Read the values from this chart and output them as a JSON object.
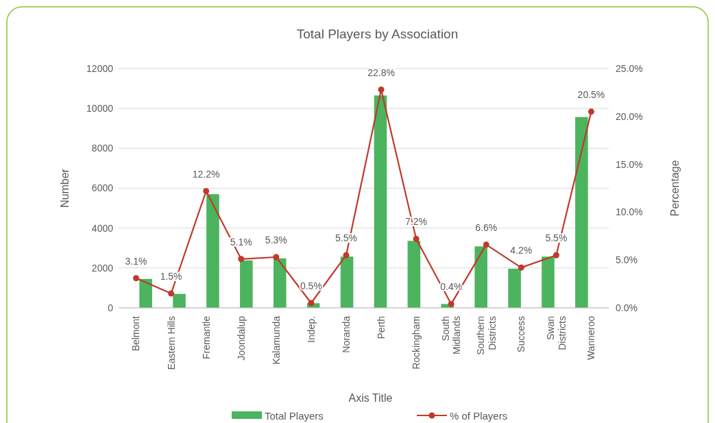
{
  "chart_data": {
    "type": "bar",
    "title": "Total Players by Association",
    "xlabel": "Axis Title",
    "ylabel": "Number",
    "y2label": "Percentage",
    "categories": [
      "Belmont",
      "Eastern Hills",
      "Fremantle",
      "Joondalup",
      "Kalamunda",
      "Indep.",
      "Noranda",
      "Perth",
      "Rockingham",
      "South Midlands",
      "Southern Districts",
      "Success",
      "Swan Districts",
      "Wanneroo"
    ],
    "series": [
      {
        "name": "Total Players",
        "color": "#4cb45e",
        "values": [
          1450,
          700,
          5700,
          2380,
          2480,
          230,
          2570,
          10650,
          3360,
          190,
          3080,
          1960,
          2570,
          9570
        ]
      },
      {
        "name": "% of Players",
        "type": "line",
        "axis": "y2",
        "color": "#c0392b",
        "marker": "circle",
        "values": [
          3.1,
          1.5,
          12.2,
          5.1,
          5.3,
          0.5,
          5.5,
          22.8,
          7.2,
          0.4,
          6.6,
          4.2,
          5.5,
          20.5
        ],
        "value_labels": [
          "3.1%",
          "1.5%",
          "12.2%",
          "5.1%",
          "5.3%",
          "0.5%",
          "5.5%",
          "22.8%",
          "7.2%",
          "0.4%",
          "6.6%",
          "4.2%",
          "5.5%",
          "20.5%"
        ]
      }
    ],
    "ylim": [
      0,
      12000
    ],
    "yticks": [
      0,
      2000,
      4000,
      6000,
      8000,
      10000,
      12000
    ],
    "y2lim": [
      0,
      25
    ],
    "y2ticks": [
      {
        "value": 0,
        "label": "0.0%"
      },
      {
        "value": 5,
        "label": "5.0%"
      },
      {
        "value": 10,
        "label": "10.0%"
      },
      {
        "value": 15,
        "label": "15.0%"
      },
      {
        "value": 20,
        "label": "20.0%"
      },
      {
        "value": 25,
        "label": "25.0%"
      }
    ],
    "grid": "y",
    "legend": "bottom"
  }
}
